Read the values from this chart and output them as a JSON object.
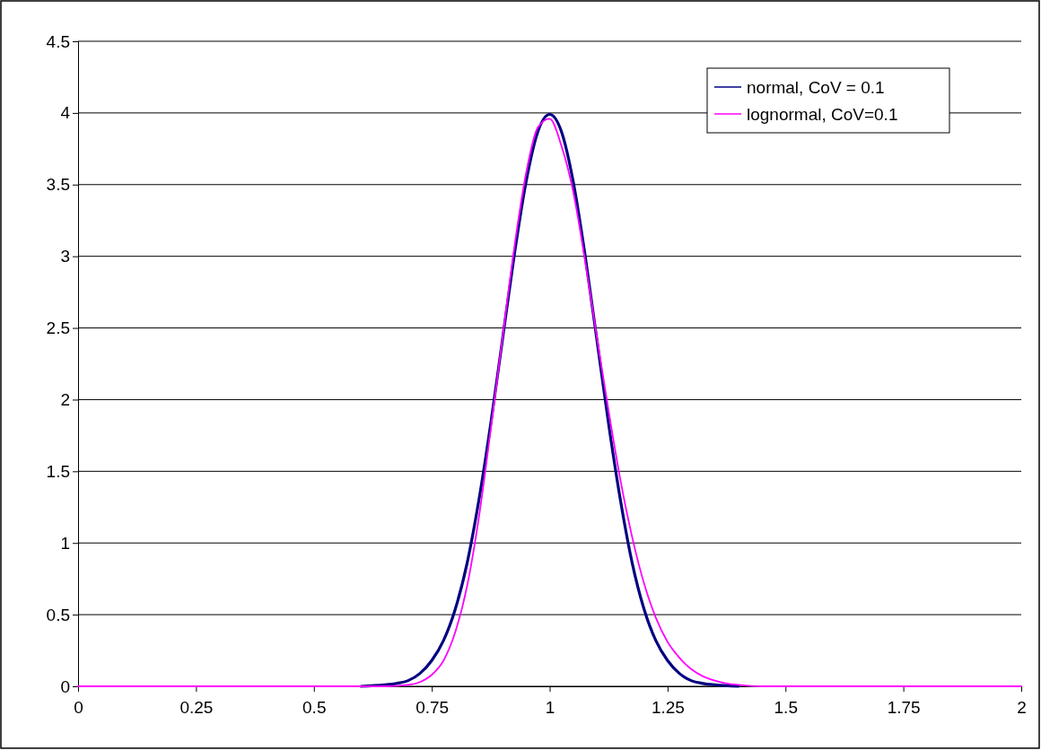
{
  "chart_data": {
    "type": "line",
    "xlim": [
      0,
      2
    ],
    "xticks": [
      0,
      0.25,
      0.5,
      0.75,
      1,
      1.25,
      1.5,
      1.75,
      2
    ],
    "ylim": [
      0,
      4.5
    ],
    "yticks": [
      0,
      0.5,
      1,
      1.5,
      2,
      2.5,
      3,
      3.5,
      4,
      4.5
    ],
    "grid": "y",
    "legend": "top right",
    "marker": "none",
    "line_style": "solid",
    "series": [
      {
        "name": "normal, CoV = 0.1",
        "color": "#000080",
        "x": [
          0.6,
          0.65,
          0.675,
          0.7,
          0.725,
          0.75,
          0.775,
          0.8,
          0.825,
          0.85,
          0.875,
          0.9,
          0.925,
          0.95,
          0.975,
          1,
          1.025,
          1.05,
          1.075,
          1.1,
          1.125,
          1.15,
          1.175,
          1.2,
          1.225,
          1.25,
          1.275,
          1.3,
          1.325,
          1.35,
          1.4
        ],
        "values": [
          0,
          0.01,
          0.02,
          0.04,
          0.09,
          0.18,
          0.32,
          0.54,
          0.86,
          1.3,
          1.83,
          2.42,
          3.01,
          3.52,
          3.87,
          3.99,
          3.87,
          3.52,
          3.01,
          2.42,
          1.83,
          1.3,
          0.86,
          0.54,
          0.32,
          0.18,
          0.09,
          0.04,
          0.02,
          0.01,
          0
        ]
      },
      {
        "name": "lognormal, CoV=0.1",
        "color": "#ff00ff",
        "x": [
          0,
          0.65,
          0.7,
          0.725,
          0.75,
          0.775,
          0.8,
          0.825,
          0.85,
          0.875,
          0.9,
          0.925,
          0.95,
          0.975,
          1,
          1.025,
          1.05,
          1.075,
          1.1,
          1.125,
          1.15,
          1.175,
          1.2,
          1.225,
          1.25,
          1.275,
          1.3,
          1.325,
          1.35,
          1.375,
          1.4,
          1.45,
          2
        ],
        "values": [
          0,
          0,
          0.01,
          0.03,
          0.08,
          0.18,
          0.38,
          0.7,
          1.18,
          1.79,
          2.43,
          3.06,
          3.58,
          3.9,
          3.96,
          3.77,
          3.45,
          2.97,
          2.44,
          1.92,
          1.44,
          1.04,
          0.72,
          0.48,
          0.31,
          0.2,
          0.12,
          0.07,
          0.04,
          0.02,
          0.01,
          0,
          0
        ]
      }
    ]
  }
}
